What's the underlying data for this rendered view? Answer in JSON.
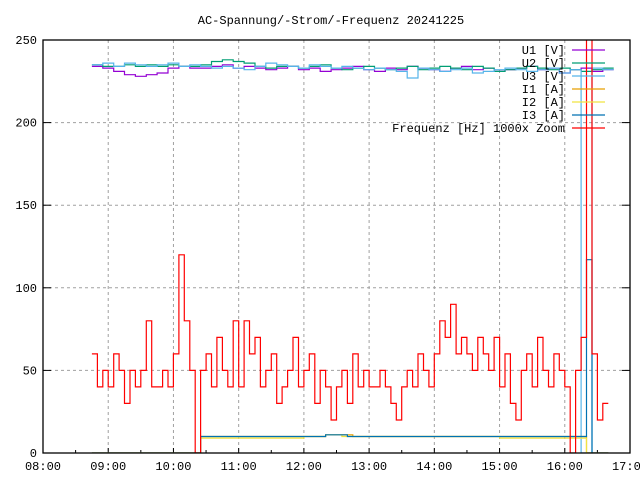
{
  "chart_data": {
    "type": "line",
    "title": "AC-Spannung/-Strom/-Frequenz 20241225",
    "xlabel": "",
    "ylabel": "",
    "ylim": [
      0,
      250
    ],
    "yticks": [
      "0",
      "50",
      "100",
      "150",
      "200",
      "250"
    ],
    "xlim": [
      "08:00",
      "17:00"
    ],
    "xticks": [
      "08:00",
      "09:00",
      "10:00",
      "11:00",
      "12:00",
      "13:00",
      "14:00",
      "15:00",
      "16:00",
      "17:00"
    ],
    "grid": true,
    "legend_position": "top-right",
    "series": [
      {
        "name": "U1 [V]",
        "color": "#9400d3",
        "start": "08:45",
        "step_min": 10,
        "values": [
          234,
          233,
          231,
          229,
          228,
          229,
          230,
          233,
          234,
          233,
          233,
          234,
          235,
          233,
          234,
          233,
          232,
          233,
          234,
          232,
          233,
          231,
          232,
          233,
          234,
          232,
          231,
          233,
          232,
          234,
          233,
          232,
          231,
          233,
          234,
          232,
          233,
          231,
          232,
          233,
          234,
          232,
          233,
          230,
          232,
          233,
          231,
          232
        ]
      },
      {
        "name": "U2 [V]",
        "color": "#009e73",
        "start": "08:45",
        "step_min": 10,
        "values": [
          235,
          234,
          234,
          235,
          234,
          235,
          234,
          235,
          234,
          234,
          235,
          237,
          238,
          237,
          236,
          234,
          233,
          234,
          234,
          233,
          234,
          235,
          233,
          232,
          233,
          234,
          233,
          232,
          233,
          234,
          232,
          233,
          234,
          233,
          232,
          234,
          233,
          231,
          232,
          233,
          234,
          233,
          232,
          233,
          232,
          231,
          232,
          233
        ]
      },
      {
        "name": "U3 [V]",
        "color": "#56b4e9",
        "start": "08:45",
        "step_min": 10,
        "values": [
          235,
          236,
          234,
          236,
          235,
          234,
          235,
          236,
          234,
          235,
          234,
          233,
          234,
          233,
          232,
          234,
          236,
          235,
          234,
          233,
          235,
          234,
          233,
          234,
          233,
          232,
          233,
          232,
          231,
          227,
          233,
          232,
          231,
          232,
          233,
          230,
          231,
          232,
          233,
          232,
          231,
          232,
          233,
          230,
          232,
          0,
          233,
          232
        ]
      },
      {
        "name": "I1 [A]",
        "color": "#e69f00",
        "start": "08:45",
        "step_min": 5,
        "values": [
          0,
          0,
          0,
          0,
          0,
          0,
          0,
          0,
          0,
          0,
          0,
          0,
          0,
          0,
          0,
          0,
          0,
          0,
          0,
          0,
          10,
          10,
          10,
          10,
          10,
          10,
          10,
          10,
          10,
          10,
          10,
          10,
          10,
          10,
          10,
          10,
          10,
          10,
          10,
          10,
          10,
          10,
          10,
          11,
          11,
          11,
          11,
          11,
          10,
          10,
          10,
          10,
          10,
          10,
          10,
          10,
          10,
          10,
          10,
          10,
          10,
          10,
          10,
          10,
          10,
          10,
          10,
          10,
          10,
          10,
          10,
          10,
          10,
          10,
          10,
          10,
          10,
          10,
          10,
          10,
          10,
          10,
          10,
          10,
          10,
          10,
          10,
          10,
          10,
          10,
          10,
          0,
          0,
          0,
          0
        ]
      },
      {
        "name": "I2 [A]",
        "color": "#f0e442",
        "start": "08:45",
        "step_min": 5,
        "values": [
          0,
          0,
          0,
          0,
          0,
          0,
          0,
          0,
          0,
          0,
          0,
          0,
          0,
          0,
          0,
          0,
          0,
          0,
          0,
          0,
          9,
          9,
          9,
          9,
          9,
          9,
          9,
          9,
          9,
          9,
          9,
          9,
          9,
          9,
          9,
          9,
          9,
          9,
          9,
          10,
          10,
          10,
          10,
          11,
          11,
          11,
          10,
          10,
          10,
          10,
          10,
          10,
          10,
          10,
          10,
          10,
          10,
          10,
          10,
          10,
          10,
          10,
          10,
          10,
          10,
          10,
          10,
          10,
          10,
          10,
          10,
          10,
          10,
          10,
          10,
          9,
          9,
          9,
          9,
          9,
          9,
          9,
          9,
          9,
          9,
          9,
          9,
          9,
          9,
          9,
          9,
          0,
          0,
          0,
          0
        ]
      },
      {
        "name": "I3 [A]",
        "color": "#0072b2",
        "start": "08:45",
        "step_min": 5,
        "values": [
          0,
          0,
          0,
          0,
          0,
          0,
          0,
          0,
          0,
          0,
          0,
          0,
          0,
          0,
          0,
          0,
          0,
          0,
          0,
          0,
          10,
          10,
          10,
          10,
          10,
          10,
          10,
          10,
          10,
          10,
          10,
          10,
          10,
          10,
          10,
          10,
          10,
          10,
          10,
          10,
          10,
          10,
          10,
          11,
          11,
          11,
          11,
          10,
          10,
          10,
          10,
          10,
          10,
          10,
          10,
          10,
          10,
          10,
          10,
          10,
          10,
          10,
          10,
          10,
          10,
          10,
          10,
          10,
          10,
          10,
          10,
          10,
          10,
          10,
          10,
          10,
          10,
          10,
          10,
          10,
          10,
          10,
          10,
          10,
          10,
          10,
          10,
          10,
          10,
          10,
          10,
          117,
          0,
          0,
          0
        ]
      },
      {
        "name": "Frequenz [Hz] 1000x Zoom",
        "color": "#ff0000",
        "start": "08:45",
        "step_min": 5,
        "values": [
          60,
          40,
          50,
          40,
          60,
          50,
          30,
          50,
          40,
          50,
          80,
          40,
          40,
          50,
          40,
          60,
          120,
          80,
          50,
          0,
          50,
          60,
          40,
          70,
          50,
          40,
          80,
          40,
          80,
          60,
          70,
          40,
          50,
          60,
          30,
          40,
          50,
          70,
          40,
          50,
          60,
          30,
          50,
          40,
          20,
          40,
          50,
          30,
          60,
          40,
          50,
          40,
          40,
          50,
          40,
          30,
          20,
          40,
          50,
          40,
          60,
          50,
          40,
          60,
          80,
          70,
          90,
          60,
          70,
          60,
          50,
          70,
          60,
          50,
          70,
          40,
          60,
          30,
          20,
          50,
          60,
          40,
          70,
          50,
          40,
          60,
          50,
          40,
          0,
          50,
          70,
          260,
          60,
          20,
          30
        ]
      }
    ]
  }
}
